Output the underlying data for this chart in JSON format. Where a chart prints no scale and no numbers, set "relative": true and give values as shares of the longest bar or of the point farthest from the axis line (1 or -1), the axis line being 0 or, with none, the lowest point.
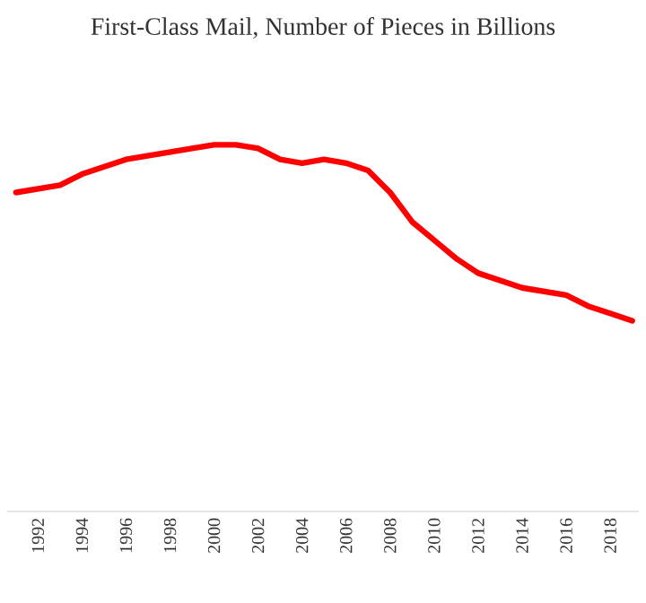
{
  "chart_data": {
    "type": "line",
    "title": "First-Class Mail, Number of Pieces in Billions",
    "relative": true,
    "x": [
      1991,
      1992,
      1993,
      1994,
      1995,
      1996,
      1997,
      1998,
      1999,
      2000,
      2001,
      2002,
      2003,
      2004,
      2005,
      2006,
      2007,
      2008,
      2009,
      2010,
      2011,
      2012,
      2013,
      2014,
      2015,
      2016,
      2017,
      2018,
      2019
    ],
    "xlim": [
      1990.6,
      2019.3
    ],
    "xticks": [
      1992,
      1994,
      1996,
      1998,
      2000,
      2002,
      2004,
      2006,
      2008,
      2010,
      2012,
      2014,
      2016,
      2018
    ],
    "series": [
      {
        "color": "#ff0000",
        "values": [
          0.87,
          0.88,
          0.89,
          0.92,
          0.94,
          0.96,
          0.97,
          0.98,
          0.99,
          1,
          1,
          0.99,
          0.96,
          0.95,
          0.96,
          0.95,
          0.93,
          0.87,
          0.79,
          0.74,
          0.69,
          0.65,
          0.63,
          0.61,
          0.6,
          0.59,
          0.56,
          0.54,
          0.52
        ]
      }
    ]
  }
}
